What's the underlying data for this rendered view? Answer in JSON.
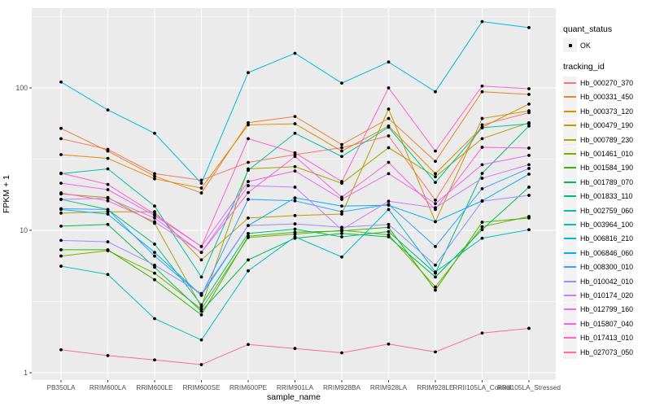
{
  "legend": {
    "quant_status": {
      "title": "quant_status",
      "items": [
        {
          "label": "OK",
          "marker": "black-point"
        }
      ]
    },
    "tracking_id": {
      "title": "tracking_id",
      "items": [
        {
          "label": "Hb_000270_370",
          "color": "#F8766D"
        },
        {
          "label": "Hb_000331_450",
          "color": "#EA8331"
        },
        {
          "label": "Hb_000373_120",
          "color": "#D89000"
        },
        {
          "label": "Hb_000479_190",
          "color": "#C09B00"
        },
        {
          "label": "Hb_000789_230",
          "color": "#A3A500"
        },
        {
          "label": "Hb_001461_010",
          "color": "#7CAE00"
        },
        {
          "label": "Hb_001584_190",
          "color": "#39B600"
        },
        {
          "label": "Hb_001789_070",
          "color": "#00BB4E"
        },
        {
          "label": "Hb_001833_110",
          "color": "#00BF7D"
        },
        {
          "label": "Hb_002759_060",
          "color": "#00C1A3"
        },
        {
          "label": "Hb_003964_100",
          "color": "#00BFC4"
        },
        {
          "label": "Hb_006816_210",
          "color": "#00BADE"
        },
        {
          "label": "Hb_006846_060",
          "color": "#00B0F6"
        },
        {
          "label": "Hb_008300_010",
          "color": "#35A2FF"
        },
        {
          "label": "Hb_010042_010",
          "color": "#9590FF"
        },
        {
          "label": "Hb_010174_020",
          "color": "#C77CFF"
        },
        {
          "label": "Hb_012799_160",
          "color": "#E76BF3"
        },
        {
          "label": "Hb_015807_040",
          "color": "#FA62DB"
        },
        {
          "label": "Hb_017413_010",
          "color": "#FF61CC"
        },
        {
          "label": "Hb_027073_050",
          "color": "#FF6A98"
        }
      ]
    }
  },
  "chart_data": {
    "type": "line",
    "title": "",
    "xlabel": "sample_name",
    "ylabel": "FPKM + 1",
    "y_scale": "log10",
    "ylim": [
      0.9,
      360
    ],
    "y_major_ticks": [
      1,
      10,
      100
    ],
    "y_minor_gridlines": [
      3.162,
      31.62,
      316.2
    ],
    "grid": true,
    "panel_bg": "#EBEBEB",
    "grid_color": "#FFFFFF",
    "point_color": "#000000",
    "legend_position": "right",
    "quant_status_all_points": "OK",
    "categories": [
      "PB350LA",
      "RRIM600LA",
      "RRIM600LE",
      "RRIM600SE",
      "RRIM600PE",
      "RRIM901LA",
      "RRIM928BA",
      "RRIM928LA",
      "RRIM928LE",
      "RRII105LA_Control",
      "RRII105LA_Stressed"
    ],
    "series": [
      {
        "name": "Hb_000270_370",
        "color": "#F8766D",
        "values": [
          44,
          37,
          25,
          22.5,
          30,
          34,
          38,
          46,
          16.3,
          55,
          67
        ]
      },
      {
        "name": "Hb_000331_450",
        "color": "#EA8331",
        "values": [
          52,
          36,
          24,
          18.3,
          57,
          63,
          40,
          61,
          30.5,
          94,
          90
        ]
      },
      {
        "name": "Hb_000373_120",
        "color": "#D89000",
        "values": [
          34,
          32,
          23,
          19.8,
          55,
          56,
          36,
          54,
          25,
          53,
          77
        ]
      },
      {
        "name": "Hb_000479_190",
        "color": "#C09B00",
        "values": [
          13.2,
          13.5,
          13.5,
          6.2,
          12.2,
          12.7,
          13,
          71,
          11.5,
          61,
          69
        ]
      },
      {
        "name": "Hb_000789_230",
        "color": "#A3A500",
        "values": [
          18,
          17,
          11.2,
          2.9,
          27,
          28,
          21.4,
          38,
          23.8,
          44,
          57
        ]
      },
      {
        "name": "Hb_001461_010",
        "color": "#7CAE00",
        "values": [
          6.6,
          7.2,
          5.0,
          2.8,
          8.9,
          9.4,
          10,
          9.3,
          4.0,
          10.6,
          12.5
        ]
      },
      {
        "name": "Hb_001584_190",
        "color": "#39B600",
        "values": [
          7.3,
          7.3,
          4.5,
          2.55,
          9.1,
          9.7,
          9.9,
          10.5,
          3.8,
          11.4,
          12.2
        ]
      },
      {
        "name": "Hb_001789_070",
        "color": "#00BB4E",
        "values": [
          10.7,
          11,
          5.5,
          2.7,
          6.2,
          8.8,
          9.5,
          9.0,
          4.7,
          10.1,
          20.1
        ]
      },
      {
        "name": "Hb_001833_110",
        "color": "#00BF7D",
        "values": [
          16.5,
          14,
          8.0,
          3.0,
          9.5,
          10.2,
          9.0,
          9.8,
          5.0,
          25.1,
          54
        ]
      },
      {
        "name": "Hb_002759_060",
        "color": "#00C1A3",
        "values": [
          25,
          27,
          14.8,
          4.7,
          26.4,
          48,
          33,
          53,
          21.7,
          52.5,
          56
        ]
      },
      {
        "name": "Hb_003964_100",
        "color": "#00BFC4",
        "values": [
          5.6,
          4.9,
          2.4,
          1.7,
          5.2,
          9.0,
          6.5,
          14,
          5.1,
          8.8,
          10.1
        ]
      },
      {
        "name": "Hb_006816_210",
        "color": "#00BADE",
        "values": [
          110,
          70,
          48,
          21.4,
          128,
          175,
          108,
          152,
          94,
          292,
          265
        ]
      },
      {
        "name": "Hb_006846_060",
        "color": "#00B0F6",
        "values": [
          14,
          13,
          7.0,
          3.5,
          10.8,
          16.9,
          14.8,
          15,
          11.5,
          16.1,
          24.8
        ]
      },
      {
        "name": "Hb_008300_010",
        "color": "#35A2FF",
        "values": [
          14.2,
          14,
          6.6,
          3.5,
          16.5,
          16.1,
          13.5,
          15.2,
          7.7,
          19.6,
          27.2
        ]
      },
      {
        "name": "Hb_010042_010",
        "color": "#9590FF",
        "values": [
          8.5,
          8.3,
          5.7,
          3.6,
          10.8,
          11.1,
          10.5,
          11,
          5.7,
          16,
          17.6
        ]
      },
      {
        "name": "Hb_010174_020",
        "color": "#C77CFF",
        "values": [
          16.5,
          16.8,
          12.2,
          7.0,
          20.6,
          20.1,
          10.1,
          16,
          14.4,
          23.2,
          28.9
        ]
      },
      {
        "name": "Hb_012799_160",
        "color": "#E76BF3",
        "values": [
          21.4,
          19.3,
          12.7,
          7.7,
          22,
          26.1,
          16.5,
          25,
          15.4,
          28.9,
          33.6
        ]
      },
      {
        "name": "Hb_015807_040",
        "color": "#FA62DB",
        "values": [
          18.3,
          16.1,
          11.5,
          7.0,
          18.4,
          33,
          17.1,
          30,
          14,
          38.3,
          37.8
        ]
      },
      {
        "name": "Hb_017413_010",
        "color": "#FF61CC",
        "values": [
          25.2,
          21,
          13,
          7.7,
          44,
          35,
          22,
          100,
          36,
          103,
          98.7
        ]
      },
      {
        "name": "Hb_027073_050",
        "color": "#FF6A98",
        "values": [
          1.45,
          1.32,
          1.23,
          1.14,
          1.58,
          1.48,
          1.38,
          1.59,
          1.4,
          1.9,
          2.05
        ]
      }
    ]
  }
}
